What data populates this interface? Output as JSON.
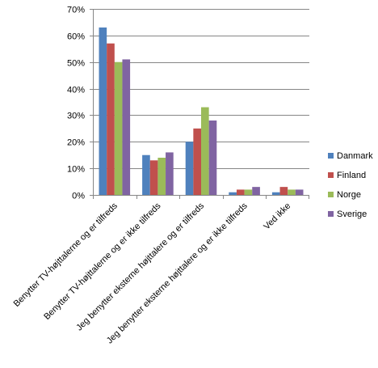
{
  "chart_data": {
    "type": "bar",
    "title": "",
    "xlabel": "",
    "ylabel": "",
    "ylim": [
      0,
      70
    ],
    "yticks": [
      "0%",
      "10%",
      "20%",
      "30%",
      "40%",
      "50%",
      "60%",
      "70%"
    ],
    "grid": true,
    "legend_position": "right",
    "categories": [
      "Benytter TV-højttalerne og er tilfreds",
      "Benytter TV-højttalerne  og er ikke tilfreds",
      "Jeg benytter eksterne højttalere og er tilfreds",
      "Jeg benytter eksterne højttalere og er ikke tilfreds",
      "Ved ikke"
    ],
    "series": [
      {
        "name": "Danmark",
        "color": "#4F81BD",
        "values": [
          63,
          15,
          20,
          1,
          1
        ]
      },
      {
        "name": "Finland",
        "color": "#C0504D",
        "values": [
          57,
          13,
          25,
          2,
          3
        ]
      },
      {
        "name": "Norge",
        "color": "#9BBB59",
        "values": [
          50,
          14,
          33,
          2,
          2
        ]
      },
      {
        "name": "Sverige",
        "color": "#8064A2",
        "values": [
          51,
          16,
          28,
          3,
          2
        ]
      }
    ]
  }
}
